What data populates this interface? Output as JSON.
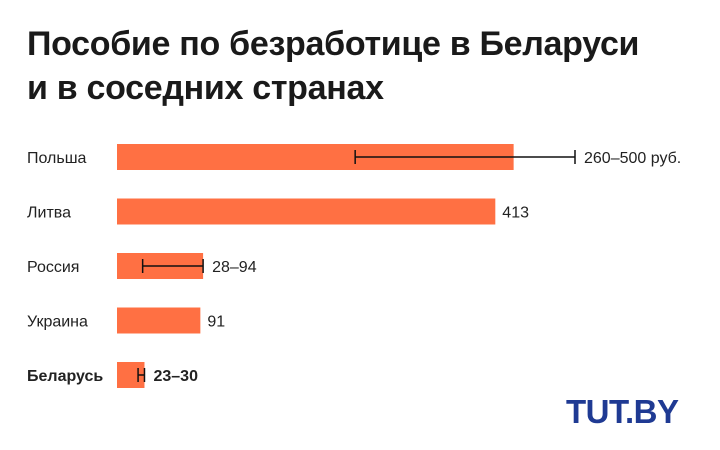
{
  "title_lines": [
    "Пособие по безработице в Беларуси",
    "и в соседних странах"
  ],
  "logo_text": "TUT.BY",
  "colors": {
    "bar": "#ff7043",
    "error": "#111111",
    "text": "#222222",
    "logo": "#1f3a93"
  },
  "chart_data": {
    "type": "bar",
    "orientation": "horizontal",
    "title": "Пособие по безработице в Беларуси и в соседних странах",
    "xlim": [
      0,
      500
    ],
    "grid": false,
    "highlight": "Беларусь",
    "series": [
      {
        "categories": [
          "Польша",
          "Литва",
          "Россия",
          "Украина",
          "Беларусь"
        ],
        "values": [
          433,
          413,
          94,
          91,
          30
        ],
        "ranges": [
          [
            260,
            500
          ],
          null,
          [
            28,
            94
          ],
          null,
          [
            23,
            30
          ]
        ],
        "labels": [
          "260–500 руб.",
          "413",
          "28–94",
          "91",
          "23–30"
        ]
      }
    ]
  }
}
